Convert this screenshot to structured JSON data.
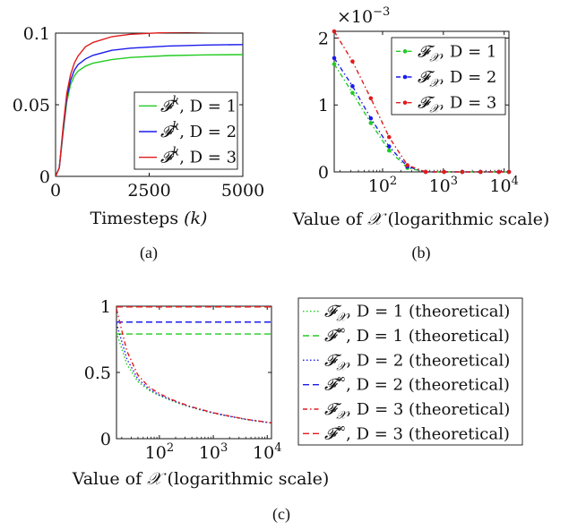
{
  "chart_data": [
    {
      "id": "a",
      "type": "line",
      "caption": "(a)",
      "xlabel_text": "Timesteps ",
      "xlabel_var": "(k)",
      "ylabel": "",
      "xlim": [
        0,
        5000
      ],
      "ylim": [
        0,
        0.1
      ],
      "xticks": [
        0,
        2500,
        5000
      ],
      "xtick_labels": [
        "0",
        "2500",
        "5000"
      ],
      "yticks": [
        0,
        0.05,
        0.1
      ],
      "ytick_labels": [
        "0",
        "0.05",
        "0.1"
      ],
      "legend": "bottom-right",
      "series": [
        {
          "name": "F^k, D = 1",
          "sym": "𝓕",
          "sup": "k",
          "sub": "",
          "rest": ", D = 1",
          "color": "#22cc22",
          "dash": "",
          "x": [
            0,
            100,
            200,
            300,
            400,
            500,
            600,
            800,
            1000,
            1500,
            2000,
            3000,
            4000,
            5000
          ],
          "y": [
            0,
            0.006,
            0.03,
            0.052,
            0.064,
            0.07,
            0.0735,
            0.077,
            0.079,
            0.0815,
            0.083,
            0.0843,
            0.0848,
            0.085
          ]
        },
        {
          "name": "F^k, D = 2",
          "sym": "𝓕",
          "sup": "k",
          "sub": "",
          "rest": ", D = 2",
          "color": "#1a1aee",
          "dash": "",
          "x": [
            0,
            100,
            200,
            300,
            400,
            500,
            600,
            800,
            1000,
            1500,
            2000,
            3000,
            4000,
            5000
          ],
          "y": [
            0,
            0.006,
            0.032,
            0.055,
            0.067,
            0.074,
            0.078,
            0.082,
            0.0845,
            0.088,
            0.0895,
            0.091,
            0.0917,
            0.092
          ]
        },
        {
          "name": "F^k, D = 3",
          "sym": "𝓕",
          "sup": "k",
          "sub": "",
          "rest": ", D = 3",
          "color": "#e01b1b",
          "dash": "",
          "x": [
            0,
            100,
            200,
            300,
            400,
            500,
            600,
            800,
            1000,
            1500,
            2000,
            3000,
            4000,
            5000
          ],
          "y": [
            0,
            0.006,
            0.034,
            0.058,
            0.071,
            0.079,
            0.084,
            0.0905,
            0.0935,
            0.0975,
            0.0992,
            0.1005,
            0.101,
            0.1012
          ]
        }
      ]
    },
    {
      "id": "b",
      "type": "line",
      "caption": "(b)",
      "xlabel_text": "Value of ",
      "xlabel_var": "𝒳",
      "xlabel_after": " (logarithmic scale)",
      "ylabel": "",
      "y_multiplier": "×10",
      "y_multiplier_exp": "−3",
      "xscale": "log",
      "xlim": [
        16,
        12000
      ],
      "ylim": [
        0,
        0.0021
      ],
      "xticks": [
        100,
        1000,
        10000
      ],
      "xtick_base": [
        "10",
        "10",
        "10"
      ],
      "xtick_exp": [
        "2",
        "3",
        "4"
      ],
      "yticks": [
        0,
        0.001,
        0.002
      ],
      "ytick_labels": [
        "0",
        "1",
        "2"
      ],
      "legend": "top-right",
      "series": [
        {
          "name": "F_X, D = 1",
          "sym": "𝓕",
          "sup": "",
          "sub": "𝒳",
          "rest": ", D = 1",
          "color": "#22cc22",
          "dash": "5,3,1.5,3",
          "x": [
            16,
            32,
            64,
            128,
            256,
            512,
            1024,
            2048,
            4096,
            8192,
            12000
          ],
          "y": [
            0.00161,
            0.00118,
            0.00073,
            0.00032,
            6e-05,
            0,
            0,
            0,
            0,
            0,
            0
          ]
        },
        {
          "name": "F_X, D = 2",
          "sym": "𝓕",
          "sup": "",
          "sub": "𝒳",
          "rest": ", D = 2",
          "color": "#1a1aee",
          "dash": "5,3,1.5,3",
          "x": [
            16,
            32,
            64,
            128,
            256,
            512,
            1024,
            2048,
            4096,
            8192,
            12000
          ],
          "y": [
            0.0017,
            0.00128,
            0.0008,
            0.00038,
            8e-05,
            0,
            0,
            0,
            0,
            0,
            0
          ]
        },
        {
          "name": "F_X, D = 3",
          "sym": "𝓕",
          "sup": "",
          "sub": "𝒳",
          "rest": ", D = 3",
          "color": "#e01b1b",
          "dash": "5,3,1.5,3",
          "x": [
            16,
            32,
            64,
            128,
            256,
            512,
            1024,
            2048,
            4096,
            8192,
            12000
          ],
          "y": [
            0.0021,
            0.00165,
            0.0011,
            0.00052,
            0.0001,
            0,
            0,
            0,
            0,
            0,
            0
          ]
        }
      ]
    },
    {
      "id": "c",
      "type": "line",
      "caption": "(c)",
      "xlabel_text": "Value of ",
      "xlabel_var": "𝒳",
      "xlabel_after": " (logarithmic scale)",
      "ylabel": "",
      "xscale": "log",
      "xlim": [
        16,
        12000
      ],
      "ylim": [
        0,
        1
      ],
      "xticks": [
        100,
        1000,
        10000
      ],
      "xtick_base": [
        "10",
        "10",
        "10"
      ],
      "xtick_exp": [
        "2",
        "3",
        "4"
      ],
      "yticks": [
        0,
        0.5,
        1
      ],
      "ytick_labels": [
        "0",
        "0.5",
        "1"
      ],
      "legend": "outside-right",
      "series": [
        {
          "name": "F_X, D = 1 (theoretical)",
          "sym": "𝓕",
          "sup": "",
          "sub": "𝒳",
          "rest": ", D = 1 (theoretical)",
          "color": "#22cc22",
          "dash": "1.5,2.5",
          "x": [
            16,
            25,
            40,
            64,
            100,
            160,
            256,
            400,
            640,
            1000,
            1600,
            2560,
            4000,
            6400,
            12000
          ],
          "y": [
            0.8,
            0.56,
            0.43,
            0.365,
            0.325,
            0.29,
            0.26,
            0.235,
            0.213,
            0.193,
            0.175,
            0.16,
            0.145,
            0.133,
            0.118
          ]
        },
        {
          "name": "F∞, D = 1 (theoretical)",
          "sym": "𝓕",
          "sup": "∞",
          "sub": "",
          "rest": ", D = 1 (theoretical)",
          "color": "#22cc22",
          "dash": "7,4",
          "x": [
            16,
            12000
          ],
          "y": [
            0.79,
            0.79
          ]
        },
        {
          "name": "F_X, D = 2 (theoretical)",
          "sym": "𝓕",
          "sup": "",
          "sub": "𝒳",
          "rest": ", D = 2 (theoretical)",
          "color": "#1a1aee",
          "dash": "1.5,2.5",
          "x": [
            16,
            25,
            40,
            64,
            100,
            160,
            256,
            400,
            640,
            1000,
            1600,
            2560,
            4000,
            6400,
            12000
          ],
          "y": [
            0.87,
            0.6,
            0.45,
            0.375,
            0.33,
            0.295,
            0.263,
            0.237,
            0.215,
            0.195,
            0.177,
            0.161,
            0.146,
            0.134,
            0.119
          ]
        },
        {
          "name": "F∞, D = 2 (theoretical)",
          "sym": "𝓕",
          "sup": "∞",
          "sub": "",
          "rest": ", D = 2 (theoretical)",
          "color": "#1a1aee",
          "dash": "7,4",
          "x": [
            16,
            12000
          ],
          "y": [
            0.88,
            0.88
          ]
        },
        {
          "name": "F_X, D = 3 (theoretical)",
          "sym": "𝓕",
          "sup": "",
          "sub": "𝒳",
          "rest": ", D = 3 (theoretical)",
          "color": "#e01b1b",
          "dash": "5,3,1.5,3",
          "x": [
            16,
            25,
            40,
            64,
            100,
            160,
            256,
            400,
            640,
            1000,
            1600,
            2560,
            4000,
            6400,
            12000
          ],
          "y": [
            0.98,
            0.66,
            0.48,
            0.39,
            0.34,
            0.3,
            0.267,
            0.24,
            0.217,
            0.196,
            0.178,
            0.162,
            0.147,
            0.135,
            0.12
          ]
        },
        {
          "name": "F∞, D = 3 (theoretical)",
          "sym": "𝓕",
          "sup": "∞",
          "sub": "",
          "rest": ", D = 3 (theoretical)",
          "color": "#e01b1b",
          "dash": "7,4",
          "x": [
            16,
            12000
          ],
          "y": [
            0.995,
            0.995
          ]
        }
      ]
    }
  ]
}
